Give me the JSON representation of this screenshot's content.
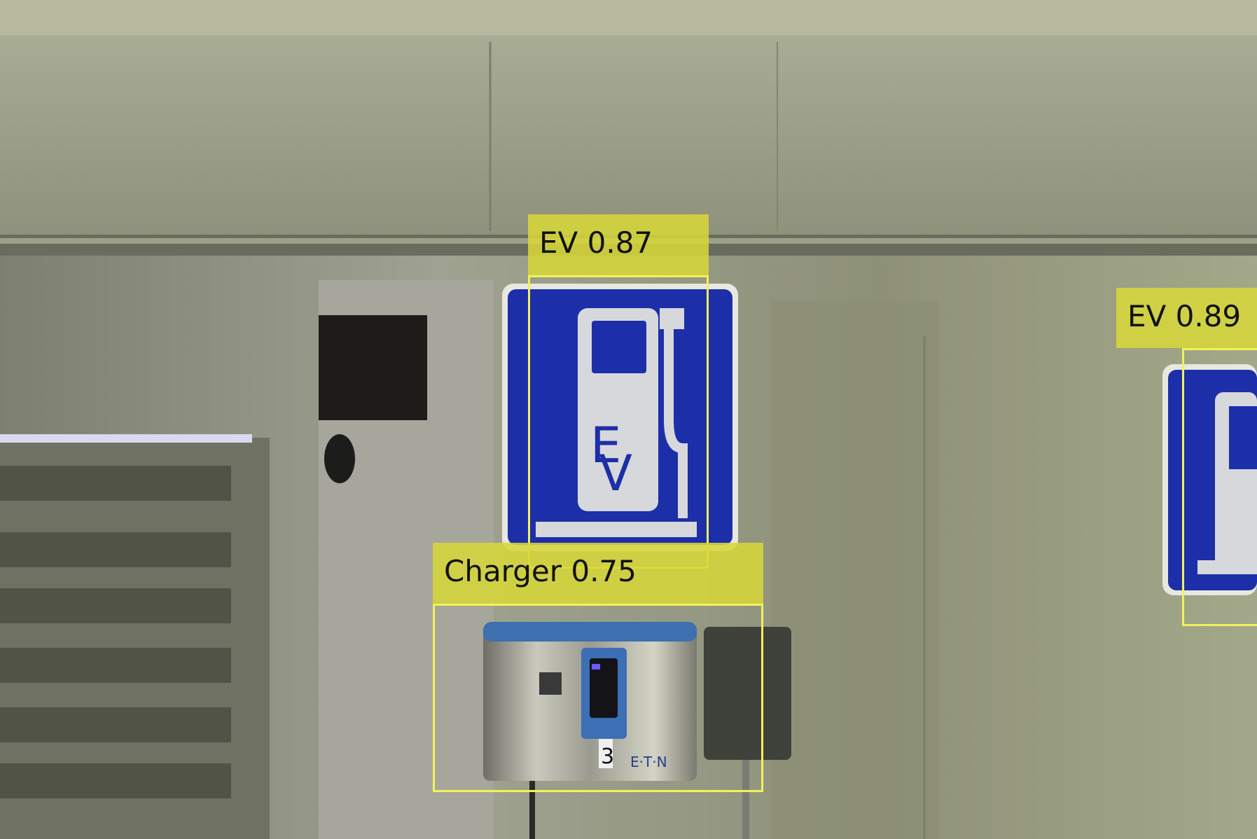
{
  "detections": [
    {
      "label": "EV",
      "score": "0.87"
    },
    {
      "label": "EV",
      "score": "0.89"
    },
    {
      "label": "Charger",
      "score": "0.75"
    }
  ],
  "sign": {
    "letters": "EV"
  },
  "charger": {
    "number": "3",
    "brand": "E·T·N"
  },
  "colors": {
    "box": "#f2f25a",
    "label_bg": "#d6d63a",
    "sign_blue": "#1d2fa8",
    "wall": "#8e917a"
  }
}
